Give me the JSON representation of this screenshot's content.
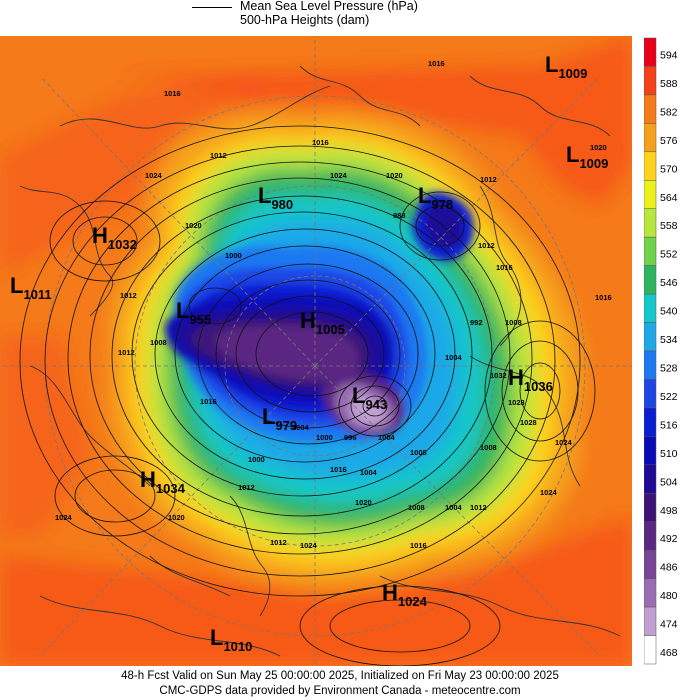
{
  "legend": {
    "line1": "Mean Sea Level Pressure (hPa)",
    "line2": "500-hPa Heights (dam)"
  },
  "colorbar": {
    "labels": [
      "594",
      "588",
      "582",
      "576",
      "570",
      "564",
      "558",
      "552",
      "546",
      "540",
      "534",
      "528",
      "522",
      "516",
      "510",
      "504",
      "498",
      "492",
      "486",
      "480",
      "474",
      "468"
    ],
    "colors": [
      "#e8001a",
      "#f5401a",
      "#f57a1a",
      "#f5a01a",
      "#ffd21e",
      "#eef01e",
      "#b7e63c",
      "#72d24c",
      "#2fb35c",
      "#12c8c8",
      "#1ea8e8",
      "#1e78f0",
      "#1e46e6",
      "#0a1ed2",
      "#0a0ab8",
      "#1e0a96",
      "#3c1478",
      "#5a2882",
      "#7a4496",
      "#9a6cb4",
      "#c0a0d2",
      "#ffffff"
    ]
  },
  "pressure_centers": [
    {
      "type": "L",
      "value": "1009"
    },
    {
      "type": "L",
      "value": "1009"
    },
    {
      "type": "L",
      "value": "980"
    },
    {
      "type": "L",
      "value": "978"
    },
    {
      "type": "H",
      "value": "1032"
    },
    {
      "type": "L",
      "value": "1011"
    },
    {
      "type": "L",
      "value": "955"
    },
    {
      "type": "H",
      "value": "1005"
    },
    {
      "type": "H",
      "value": "1036"
    },
    {
      "type": "L",
      "value": "943"
    },
    {
      "type": "L",
      "value": "979"
    },
    {
      "type": "H",
      "value": "1034"
    },
    {
      "type": "H",
      "value": "1024"
    },
    {
      "type": "L",
      "value": "1010"
    }
  ],
  "isobar_labels": [
    "1016",
    "1012",
    "1024",
    "1020",
    "1016",
    "1024",
    "1020",
    "1016",
    "1012",
    "988",
    "1000",
    "1012",
    "1008",
    "1012",
    "1016",
    "1024",
    "1020",
    "1000",
    "1012",
    "1004",
    "1016",
    "1012",
    "1024",
    "1020",
    "1000",
    "996",
    "1004",
    "1008",
    "1004",
    "1016",
    "1012",
    "1008",
    "1016",
    "1028",
    "1024",
    "1020",
    "1012",
    "1016",
    "1008",
    "992",
    "1004",
    "1004",
    "1008",
    "1032",
    "1028",
    "1024"
  ],
  "footer": {
    "line1": "48-h Fcst Valid on Sun May 25 00:00:00 2025, Initialized on Fri May 23 00:00:00 2025",
    "line2": "CMC-GDPS data provided by Environment Canada - meteocentre.com"
  }
}
